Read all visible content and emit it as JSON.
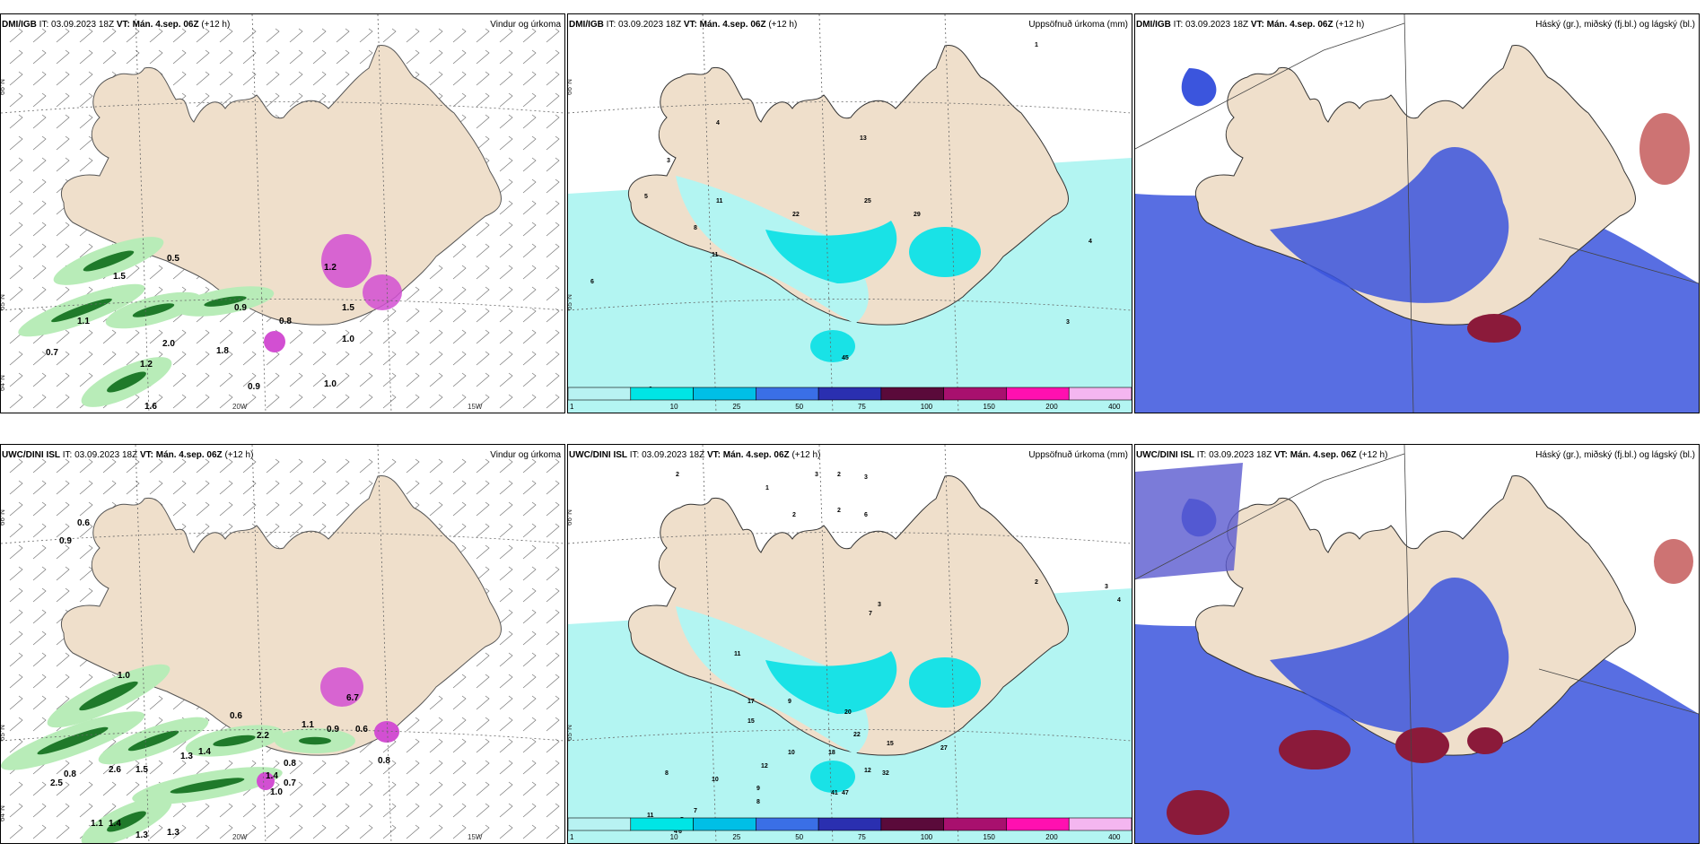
{
  "panels": [
    {
      "model": "DMI/IGB",
      "it": "IT: 03.09.2023 18Z",
      "vt_label": "VT:",
      "vt": "Mán. 4.sep. 06Z",
      "lead": "(+12 h)",
      "title": "Vindur og úrkoma",
      "labels": [
        "0.5",
        "1.1",
        "0.7",
        "0.9",
        "1.5",
        "2.0",
        "1.2",
        "1.8",
        "0.9",
        "1.0",
        "1.0",
        "1.6",
        "1.2",
        "1.5",
        "0.8"
      ],
      "lat_labels": [
        "66°N",
        "65°N",
        "64°N"
      ],
      "lon_labels": [
        "20W",
        "15W"
      ]
    },
    {
      "model": "DMI/IGB",
      "it": "IT: 03.09.2023 18Z",
      "vt_label": "VT:",
      "vt": "Mán. 4.sep. 06Z",
      "lead": "(+12 h)",
      "title": "Uppsöfnuð úrkoma (mm)",
      "labels": [
        "1",
        "4",
        "13",
        "11",
        "8",
        "11",
        "22",
        "25",
        "29",
        "6",
        "3",
        "4",
        "9",
        "3",
        "45",
        "5"
      ],
      "lat_labels": [
        "66°N",
        "65°N"
      ]
    },
    {
      "model": "DMI/IGB",
      "it": "IT: 03.09.2023 18Z",
      "vt_label": "VT:",
      "vt": "Mán. 4.sep. 06Z",
      "lead": "(+12 h)",
      "title": "Háský (gr.), miðský (fj.bl.) og lágský (bl.)"
    },
    {
      "model": "UWC/DINI ISL",
      "it": "IT: 03.09.2023 18Z",
      "vt_label": "VT:",
      "vt": "Mán. 4.sep. 06Z",
      "lead": "(+12 h)",
      "title": "Vindur og úrkoma",
      "labels": [
        "0.6",
        "0.9",
        "0.6",
        "1.0",
        "1.1",
        "0.9",
        "0.6",
        "2.2",
        "0.8",
        "1.4",
        "0.7",
        "1.0",
        "0.8",
        "2.5",
        "2.6",
        "1.5",
        "1.3",
        "1.4",
        "1.3",
        "1.3",
        "1.4",
        "1.1",
        "6.7",
        "0.8"
      ],
      "lat_labels": [
        "66°N",
        "65°N",
        "64°N"
      ],
      "lon_labels": [
        "20W",
        "15W"
      ]
    },
    {
      "model": "UWC/DINI ISL",
      "it": "IT: 03.09.2023 18Z",
      "vt_label": "VT:",
      "vt": "Mán. 4.sep. 06Z",
      "lead": "(+12 h)",
      "title": "Uppsöfnuð úrkoma (mm)",
      "labels": [
        "2",
        "3",
        "1",
        "2",
        "3",
        "2",
        "2",
        "6",
        "3",
        "7",
        "11",
        "17",
        "15",
        "9",
        "10",
        "18",
        "20",
        "22",
        "15",
        "27",
        "32",
        "12",
        "41",
        "47",
        "8",
        "10",
        "7",
        "5",
        "4",
        "11",
        "6",
        "9",
        "8",
        "12",
        "2",
        "3",
        "4"
      ],
      "lat_labels": [
        "66°N",
        "65°N"
      ]
    },
    {
      "model": "UWC/DINI ISL",
      "it": "IT: 03.09.2023 18Z",
      "vt_label": "VT:",
      "vt": "Mán. 4.sep. 06Z",
      "lead": "(+12 h)",
      "title": "Háský (gr.), miðský (fj.bl.) og lágský (bl.)"
    }
  ],
  "legend": {
    "thresholds": [
      "1",
      "10",
      "25",
      "50",
      "75",
      "100",
      "150",
      "200",
      "400"
    ],
    "colors": [
      "#b8f2f2",
      "#00e5e5",
      "#00bfe6",
      "#3a6fe6",
      "#2a2fb0",
      "#5a0a3a",
      "#a8106e",
      "#ff10b0",
      "#f4b6f0"
    ]
  },
  "colors": {
    "land": "#efdfcb",
    "rain_light": "#b8ecb8",
    "rain_dark": "#1f7a2a",
    "snow_pink": "#d24fd2",
    "acc_light": "#b3f5f2",
    "acc_mid": "#19e2e6",
    "cloud_low": "#3b55dd",
    "cloud_mid": "#5a4fa8",
    "cloud_high": "#8b1a3a"
  }
}
